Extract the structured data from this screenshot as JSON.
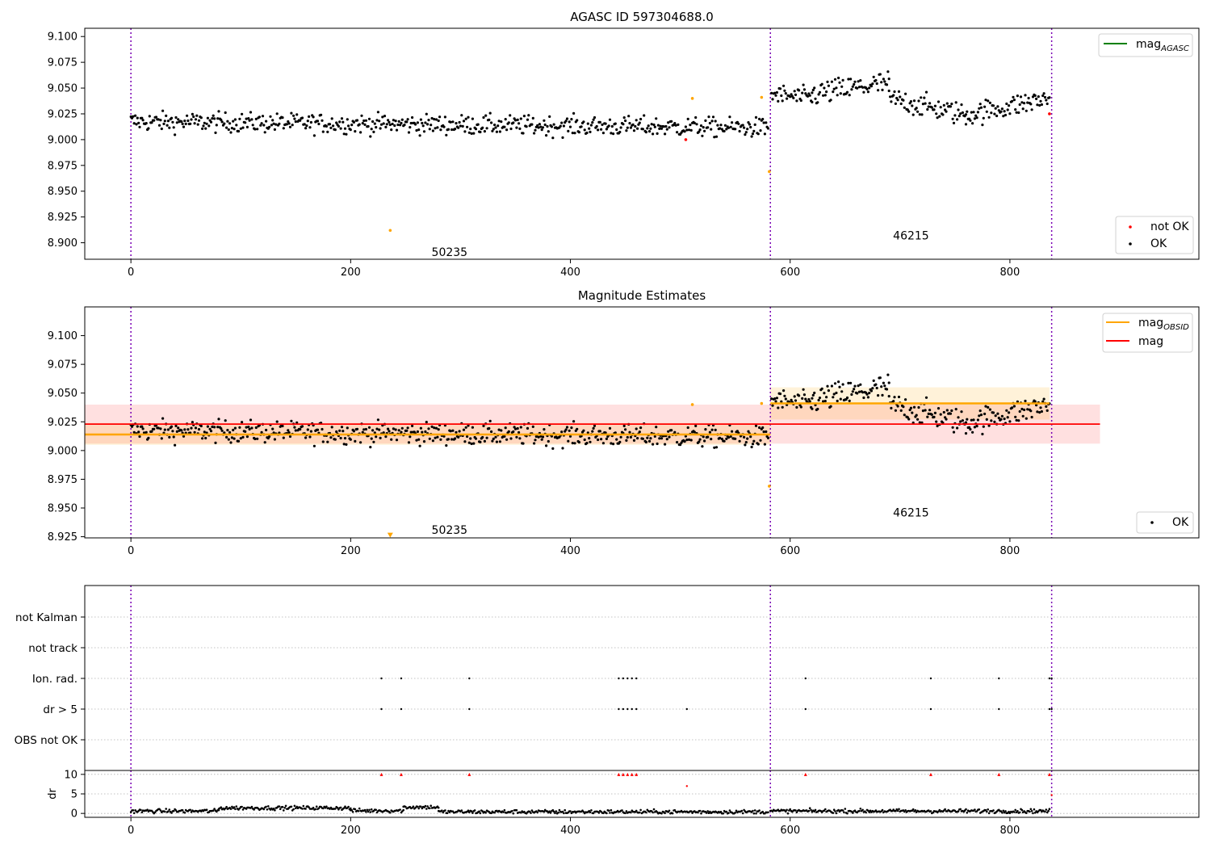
{
  "chart_data": [
    {
      "type": "scatter",
      "title": "AGASC ID 597304688.0",
      "xlim": [
        -42,
        972
      ],
      "ylim": [
        8.884,
        9.108
      ],
      "xticks": [
        "0",
        "200",
        "400",
        "600",
        "800"
      ],
      "yticks": [
        "8.900",
        "8.925",
        "8.950",
        "8.975",
        "9.000",
        "9.025",
        "9.050",
        "9.075",
        "9.100"
      ],
      "obsid_boundaries": [
        0,
        582,
        838
      ],
      "obsid_labels": [
        {
          "text": "50235",
          "x": 290,
          "y": 8.891
        },
        {
          "text": "46215",
          "x": 710,
          "y": 8.907
        }
      ],
      "legend_top": [
        {
          "label": "mag",
          "sub": "AGASC",
          "color": "#008000"
        }
      ],
      "legend_bottom": [
        {
          "label": "not OK",
          "color": "#ff0000"
        },
        {
          "label": "OK",
          "color": "#000000"
        }
      ],
      "series": [
        {
          "name": "OK",
          "color": "#000000",
          "segments": [
            {
              "x0": 0,
              "x1": 580,
              "y0": 9.0175,
              "y1": 9.0115,
              "noise": 0.0085
            },
            {
              "x0": 583,
              "x1": 620,
              "y0": 9.044,
              "y1": 9.04,
              "noise": 0.009
            },
            {
              "x0": 620,
              "x1": 690,
              "y0": 9.044,
              "y1": 9.055,
              "noise": 0.011
            },
            {
              "x0": 690,
              "x1": 760,
              "y0": 9.04,
              "y1": 9.024,
              "noise": 0.01
            },
            {
              "x0": 760,
              "x1": 836,
              "y0": 9.024,
              "y1": 9.04,
              "noise": 0.01
            }
          ]
        },
        {
          "name": "not OK",
          "color": "#ff0000",
          "points": [
            [
              505,
              9.0
            ],
            [
              836,
              9.025
            ]
          ]
        },
        {
          "name": "outliers",
          "color": "#ffa500",
          "points": [
            [
              236,
              8.912
            ],
            [
              511,
              9.04
            ],
            [
              574,
              9.041
            ],
            [
              581,
              8.969
            ]
          ]
        }
      ]
    },
    {
      "type": "scatter",
      "title": "Magnitude Estimates",
      "xlim": [
        -42,
        972
      ],
      "ylim": [
        8.924,
        9.125
      ],
      "xticks": [
        "0",
        "200",
        "400",
        "600",
        "800"
      ],
      "yticks": [
        "8.925",
        "8.950",
        "8.975",
        "9.000",
        "9.025",
        "9.050",
        "9.075",
        "9.100"
      ],
      "obsid_boundaries": [
        0,
        582,
        838
      ],
      "obsid_labels": [
        {
          "text": "50235",
          "x": 290,
          "y": 8.931
        },
        {
          "text": "46215",
          "x": 710,
          "y": 8.946
        }
      ],
      "legend_top": [
        {
          "label": "mag",
          "sub": "OBSID",
          "color": "#ffa500"
        },
        {
          "label": "mag",
          "sub": "",
          "color": "#ff0000"
        }
      ],
      "legend_bottom": [
        {
          "label": "OK",
          "color": "#000000"
        }
      ],
      "mag": {
        "value": 9.023,
        "band": [
          9.006,
          9.04
        ],
        "x": [
          -42,
          882
        ],
        "color": "#ff0000"
      },
      "mag_obsid": [
        {
          "x": [
            -42,
            582
          ],
          "value": 9.014,
          "band": [
            9.005,
            9.024
          ]
        },
        {
          "x": [
            582,
            836
          ],
          "value": 9.041,
          "band": [
            9.027,
            9.055
          ]
        }
      ],
      "series": [
        {
          "name": "OK",
          "color": "#000000",
          "segments": "same as AGASC panel"
        },
        {
          "name": "outliers",
          "color": "#ffa500",
          "points": [
            [
              511,
              9.04
            ],
            [
              574,
              9.041
            ],
            [
              581,
              8.969
            ]
          ]
        },
        {
          "name": "below range",
          "color": "#ffa500",
          "marker": "triangle-down",
          "points": [
            [
              236,
              8.925
            ]
          ]
        }
      ]
    },
    {
      "type": "scatter",
      "title": "",
      "categories": [
        "not Kalman",
        "not track",
        "Ion. rad.",
        "dr > 5",
        "OBS not OK"
      ],
      "xlim": [
        -42,
        972
      ],
      "obsid_boundaries": [
        0,
        582,
        838
      ],
      "flags": {
        "Ion. rad.": [
          228,
          246,
          308,
          444,
          448,
          452,
          456,
          460,
          614,
          728,
          790,
          836,
          838
        ],
        "dr > 5": [
          228,
          246,
          308,
          444,
          448,
          452,
          456,
          460,
          506,
          614,
          728,
          790,
          836,
          838
        ]
      },
      "dr": {
        "ylabel": "dr",
        "ylim": [
          -1,
          11
        ],
        "yticks": [
          "0",
          "5",
          "10"
        ],
        "xticks": [
          "0",
          "200",
          "400",
          "600",
          "800"
        ],
        "clipped_at_10": [
          228,
          246,
          308,
          444,
          448,
          452,
          456,
          460,
          614,
          728,
          790,
          836
        ],
        "extra_points": [
          [
            506,
            7.0
          ],
          [
            838,
            4.7
          ]
        ],
        "baseline_segments": [
          {
            "x0": 0,
            "x1": 80,
            "y": 0.6
          },
          {
            "x0": 80,
            "x1": 200,
            "y": 1.4
          },
          {
            "x0": 200,
            "x1": 248,
            "y": 0.7
          },
          {
            "x0": 248,
            "x1": 280,
            "y": 1.6
          },
          {
            "x0": 280,
            "x1": 580,
            "y": 0.4
          },
          {
            "x0": 582,
            "x1": 836,
            "y": 0.6
          }
        ]
      }
    }
  ]
}
